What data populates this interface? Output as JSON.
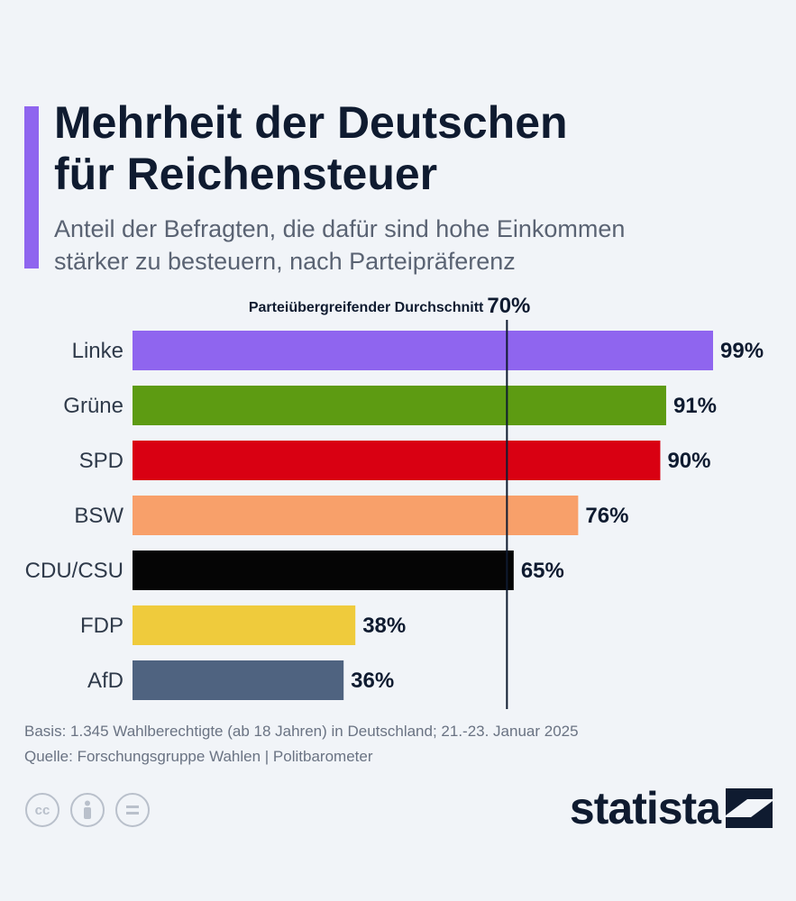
{
  "header": {
    "title_line1": "Mehrheit der Deutschen",
    "title_line2": "für Reichensteuer",
    "subtitle_line1": "Anteil der Befragten, die dafür sind hohe Einkommen",
    "subtitle_line2": "stärker zu besteuern, nach Parteipräferenz"
  },
  "colors": {
    "accent": "#8f65ef",
    "avg_line": "#0f1b30"
  },
  "chart_data": {
    "type": "bar",
    "orientation": "horizontal",
    "categories": [
      "Linke",
      "Grüne",
      "SPD",
      "BSW",
      "CDU/CSU",
      "FDP",
      "AfD"
    ],
    "values": [
      99,
      91,
      90,
      76,
      65,
      38,
      36
    ],
    "value_labels": [
      "99%",
      "91%",
      "90%",
      "76%",
      "65%",
      "38%",
      "36%"
    ],
    "bar_colors": [
      "#8f65ef",
      "#5d9b12",
      "#d90012",
      "#f8a06a",
      "#050505",
      "#efcb3c",
      "#4f6380"
    ],
    "unit": "%",
    "xlim": [
      0,
      100
    ],
    "reference_line": {
      "label": "Parteiübergreifender Durchschnitt",
      "value": 70,
      "value_label": "70%"
    }
  },
  "footer": {
    "basis": "Basis: 1.345 Wahlberechtigte (ab 18 Jahren) in Deutschland; 21.-23. Januar 2025",
    "source": "Quelle: Forschungsgruppe Wahlen | Politbarometer",
    "license_icons": [
      "cc-icon",
      "by-person-icon",
      "nd-equals-icon"
    ],
    "brand": "statista"
  }
}
